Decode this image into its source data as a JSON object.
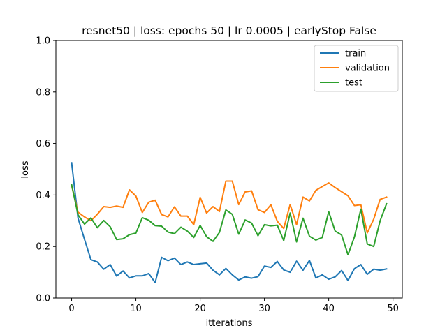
{
  "chart_data": {
    "type": "line",
    "title": "resnet50 |  loss: epochs 50 | lr 0.0005 | earlyStop False",
    "xlabel": "itterations",
    "ylabel": "loss",
    "xlim": [
      -2.45,
      51.45
    ],
    "ylim": [
      0.0,
      1.0
    ],
    "xticks": [
      0,
      10,
      20,
      30,
      40,
      50
    ],
    "yticks": [
      0.0,
      0.2,
      0.4,
      0.6,
      0.8,
      1.0
    ],
    "xtick_labels": [
      "0",
      "10",
      "20",
      "30",
      "40",
      "50"
    ],
    "ytick_labels": [
      "0.0",
      "0.2",
      "0.4",
      "0.6",
      "0.8",
      "1.0"
    ],
    "grid": false,
    "legend_position": "top-right",
    "x": [
      0,
      1,
      2,
      3,
      4,
      5,
      6,
      7,
      8,
      9,
      10,
      11,
      12,
      13,
      14,
      15,
      16,
      17,
      18,
      19,
      20,
      21,
      22,
      23,
      24,
      25,
      26,
      27,
      28,
      29,
      30,
      31,
      32,
      33,
      34,
      35,
      36,
      37,
      38,
      39,
      40,
      41,
      42,
      43,
      44,
      45,
      46,
      47,
      48,
      49
    ],
    "series": [
      {
        "name": "train",
        "color": "#1f77b4",
        "values": [
          0.525,
          0.31,
          0.228,
          0.149,
          0.14,
          0.112,
          0.13,
          0.085,
          0.105,
          0.078,
          0.086,
          0.086,
          0.095,
          0.06,
          0.158,
          0.145,
          0.155,
          0.13,
          0.14,
          0.13,
          0.133,
          0.136,
          0.108,
          0.09,
          0.115,
          0.09,
          0.07,
          0.082,
          0.077,
          0.083,
          0.124,
          0.119,
          0.142,
          0.109,
          0.1,
          0.143,
          0.108,
          0.146,
          0.078,
          0.09,
          0.073,
          0.082,
          0.107,
          0.068,
          0.114,
          0.13,
          0.092,
          0.112,
          0.108,
          0.113
        ]
      },
      {
        "name": "validation",
        "color": "#ff7f0e",
        "values": [
          0.437,
          0.333,
          0.315,
          0.3,
          0.325,
          0.355,
          0.352,
          0.357,
          0.352,
          0.42,
          0.396,
          0.332,
          0.372,
          0.38,
          0.324,
          0.315,
          0.354,
          0.318,
          0.318,
          0.285,
          0.391,
          0.33,
          0.355,
          0.336,
          0.454,
          0.454,
          0.363,
          0.412,
          0.416,
          0.343,
          0.332,
          0.362,
          0.298,
          0.27,
          0.363,
          0.285,
          0.392,
          0.377,
          0.418,
          0.433,
          0.447,
          0.429,
          0.413,
          0.397,
          0.359,
          0.362,
          0.253,
          0.306,
          0.383,
          0.392
        ]
      },
      {
        "name": "test",
        "color": "#2ca02c",
        "values": [
          0.44,
          0.323,
          0.287,
          0.311,
          0.273,
          0.301,
          0.277,
          0.227,
          0.23,
          0.246,
          0.252,
          0.312,
          0.302,
          0.281,
          0.279,
          0.256,
          0.25,
          0.275,
          0.26,
          0.235,
          0.282,
          0.238,
          0.22,
          0.255,
          0.342,
          0.325,
          0.248,
          0.303,
          0.291,
          0.242,
          0.285,
          0.28,
          0.283,
          0.223,
          0.33,
          0.218,
          0.31,
          0.24,
          0.225,
          0.235,
          0.335,
          0.26,
          0.245,
          0.168,
          0.237,
          0.345,
          0.21,
          0.2,
          0.3,
          0.366
        ]
      }
    ]
  }
}
